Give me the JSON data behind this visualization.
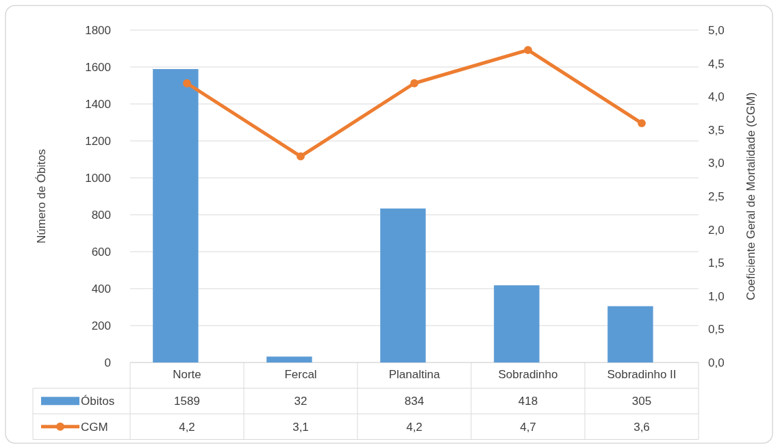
{
  "chart_data": {
    "type": "bar",
    "categories": [
      "Norte",
      "Fercal",
      "Planaltina",
      "Sobradinho",
      "Sobradinho II"
    ],
    "series": [
      {
        "name": "Óbitos",
        "color": "#5b9bd5",
        "values": [
          1589,
          32,
          834,
          418,
          305
        ],
        "value_labels": [
          "1589",
          "32",
          "834",
          "418",
          "305"
        ]
      },
      {
        "name": "CGM",
        "type": "line",
        "axis": "y2",
        "color": "#ed7d31",
        "values": [
          4.2,
          3.1,
          4.2,
          4.7,
          3.6
        ],
        "value_labels": [
          "4,2",
          "3,1",
          "4,2",
          "4,7",
          "3,6"
        ]
      }
    ],
    "ylabel": "Número de Óbitos",
    "y2label": "Coeficiente Geral de Mortalidade (CGM)",
    "ylim": [
      0,
      1800
    ],
    "yticks": [
      0,
      200,
      400,
      600,
      800,
      1000,
      1200,
      1400,
      1600,
      1800
    ],
    "y2lim": [
      0,
      5
    ],
    "y2ticks": [
      {
        "value": 0,
        "label": "0,0"
      },
      {
        "value": 0.5,
        "label": "0,5"
      },
      {
        "value": 1,
        "label": "1,0"
      },
      {
        "value": 1.5,
        "label": "1,5"
      },
      {
        "value": 2,
        "label": "2,0"
      },
      {
        "value": 2.5,
        "label": "2,5"
      },
      {
        "value": 3,
        "label": "3,0"
      },
      {
        "value": 3.5,
        "label": "3,5"
      },
      {
        "value": 4,
        "label": "4,0"
      },
      {
        "value": 4.5,
        "label": "4,5"
      },
      {
        "value": 5,
        "label": "5,0"
      }
    ],
    "grid": "y",
    "legend": "bottom",
    "marker": "circle",
    "line_style": "solid"
  }
}
